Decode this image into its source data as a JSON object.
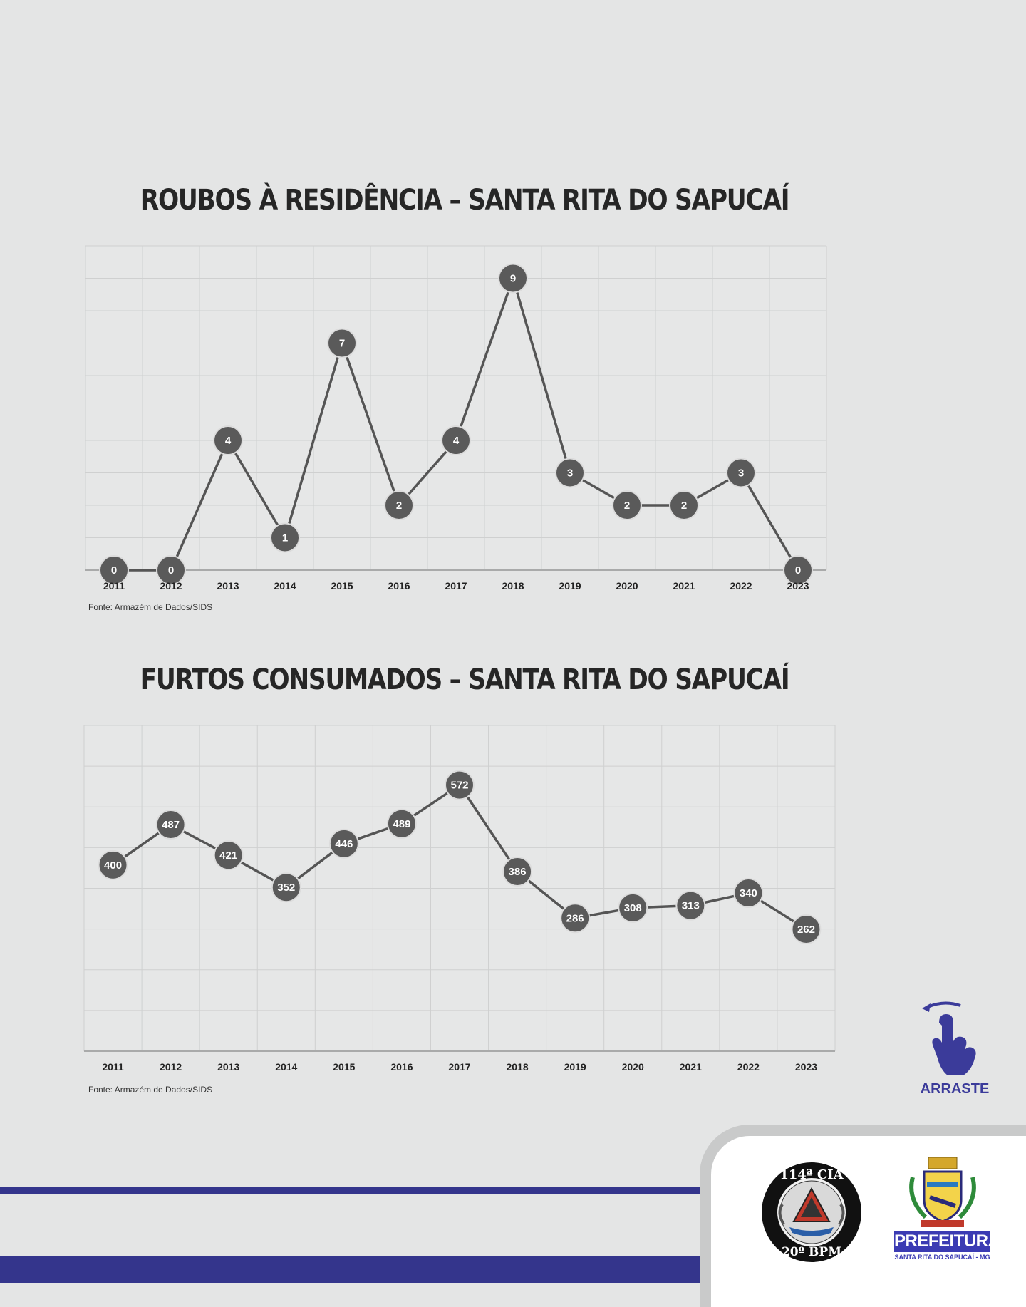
{
  "charts": [
    {
      "title": "ROUBOS À RESIDÊNCIA – SANTA RITA DO SAPUCAÍ",
      "source": "Fonte: Armazém de Dados/SIDS"
    },
    {
      "title": "FURTOS CONSUMADOS – SANTA RITA DO SAPUCAÍ",
      "source": "Fonte: Armazém de Dados/SIDS"
    }
  ],
  "chart_data": [
    {
      "type": "line",
      "title": "ROUBOS À RESIDÊNCIA – SANTA RITA DO SAPUCAÍ",
      "categories": [
        "2011",
        "2012",
        "2013",
        "2014",
        "2015",
        "2016",
        "2017",
        "2018",
        "2019",
        "2020",
        "2021",
        "2022",
        "2023"
      ],
      "values": [
        0,
        0,
        4,
        1,
        7,
        2,
        4,
        9,
        3,
        2,
        2,
        3,
        0
      ],
      "ylim": [
        0,
        10
      ],
      "grid": true,
      "data_labels": true,
      "line_color": "#555555",
      "marker_color": "#5a5a5a"
    },
    {
      "type": "line",
      "title": "FURTOS CONSUMADOS – SANTA RITA DO SAPUCAÍ",
      "categories": [
        "2011",
        "2012",
        "2013",
        "2014",
        "2015",
        "2016",
        "2017",
        "2018",
        "2019",
        "2020",
        "2021",
        "2022",
        "2023"
      ],
      "values": [
        400,
        487,
        421,
        352,
        446,
        489,
        572,
        386,
        286,
        308,
        313,
        340,
        262
      ],
      "ylim": [
        0,
        700
      ],
      "grid": true,
      "data_labels": true,
      "line_color": "#555555",
      "marker_color": "#5a5a5a"
    }
  ],
  "swipe_hint": {
    "label": "ARRASTE",
    "icon": "swipe-hand-icon",
    "color": "#3b3b9a"
  },
  "logos": {
    "cia": {
      "top_text": "114ª CIA",
      "bottom_text": "20º BPM"
    },
    "prefeitura": {
      "word": "PREFEITURA",
      "city": "SANTA RITA DO SAPUCAÍ - MG"
    }
  },
  "colors": {
    "background": "#e4e5e5",
    "accent": "#34358c",
    "grid": "#cfd0d0"
  }
}
